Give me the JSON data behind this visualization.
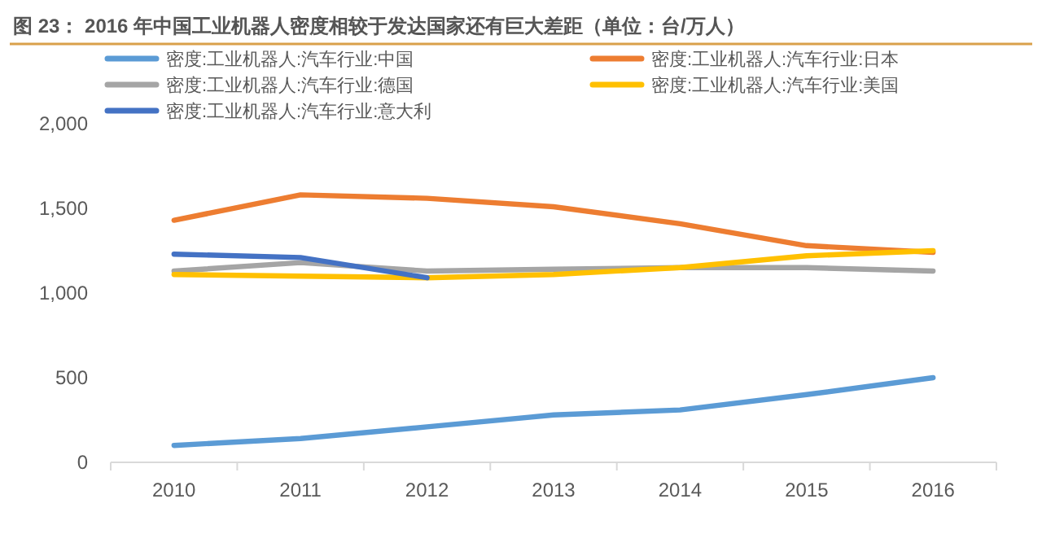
{
  "chart_data": {
    "type": "line",
    "title": "图 23：  2016 年中国工业机器人密度相较于发达国家还有巨大差距（单位：台/万人）",
    "categories": [
      "2010",
      "2011",
      "2012",
      "2013",
      "2014",
      "2015",
      "2016"
    ],
    "series": [
      {
        "name": "密度:工业机器人:汽车行业:中国",
        "color": "#5b9bd5",
        "values": [
          100,
          140,
          210,
          280,
          310,
          400,
          500
        ]
      },
      {
        "name": "密度:工业机器人:汽车行业:日本",
        "color": "#ed7d31",
        "values": [
          1430,
          1580,
          1560,
          1510,
          1410,
          1280,
          1240
        ]
      },
      {
        "name": "密度:工业机器人:汽车行业:德国",
        "color": "#a5a5a5",
        "values": [
          1130,
          1180,
          1130,
          1140,
          1150,
          1150,
          1130
        ]
      },
      {
        "name": "密度:工业机器人:汽车行业:美国",
        "color": "#ffc000",
        "values": [
          1110,
          1100,
          1090,
          1110,
          1150,
          1220,
          1250
        ]
      },
      {
        "name": "密度:工业机器人:汽车行业:意大利",
        "color": "#4472c4",
        "values": [
          1230,
          1210,
          1090,
          null,
          null,
          null,
          null
        ]
      }
    ],
    "ylim": [
      0,
      2000
    ],
    "yticks": [
      {
        "value": 0,
        "label": "0"
      },
      {
        "value": 500,
        "label": "500"
      },
      {
        "value": 1000,
        "label": "1,000"
      },
      {
        "value": 1500,
        "label": "1,500"
      },
      {
        "value": 2000,
        "label": "2,000"
      }
    ],
    "grid": false,
    "legend": "top",
    "marker": "none",
    "line_style": "solid"
  }
}
